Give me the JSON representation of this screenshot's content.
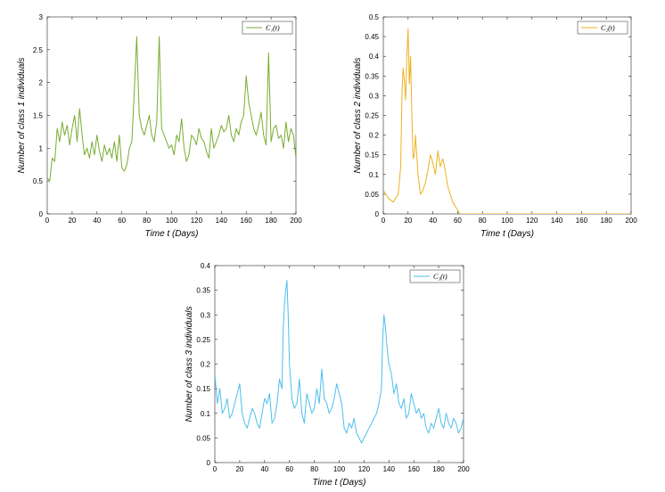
{
  "chart_data": [
    {
      "type": "line",
      "xlabel": "Time t (Days)",
      "ylabel": "Number of class 1 individuals",
      "xlim": [
        0,
        200
      ],
      "ylim": [
        0,
        3
      ],
      "xticks": [
        "0",
        "20",
        "40",
        "60",
        "80",
        "100",
        "120",
        "140",
        "160",
        "180",
        "200"
      ],
      "yticks": [
        "0",
        "0.5",
        "1",
        "1.5",
        "2",
        "2.5",
        "3"
      ],
      "grid": false,
      "legend_position": "top-right",
      "series": [
        {
          "name": "C₁(t)",
          "color": "#77AC30",
          "x": [
            0,
            2,
            4,
            6,
            8,
            10,
            12,
            14,
            16,
            18,
            20,
            22,
            24,
            26,
            28,
            30,
            32,
            34,
            36,
            38,
            40,
            42,
            44,
            46,
            48,
            50,
            52,
            54,
            56,
            58,
            60,
            62,
            64,
            66,
            68,
            70,
            72,
            74,
            76,
            78,
            80,
            82,
            84,
            86,
            88,
            90,
            92,
            94,
            96,
            98,
            100,
            102,
            104,
            106,
            108,
            110,
            112,
            114,
            116,
            118,
            120,
            122,
            124,
            126,
            128,
            130,
            132,
            134,
            136,
            138,
            140,
            142,
            144,
            146,
            148,
            150,
            152,
            154,
            156,
            158,
            160,
            162,
            164,
            166,
            168,
            170,
            172,
            174,
            176,
            178,
            180,
            182,
            184,
            186,
            188,
            190,
            192,
            194,
            196,
            198,
            200
          ],
          "values": [
            0.55,
            0.5,
            0.85,
            0.8,
            1.3,
            1.1,
            1.4,
            1.2,
            1.35,
            1.05,
            1.3,
            1.5,
            1.1,
            1.6,
            1.2,
            0.9,
            1.0,
            0.85,
            1.1,
            0.9,
            1.2,
            0.95,
            0.8,
            1.05,
            0.9,
            1.0,
            0.85,
            1.1,
            0.8,
            1.2,
            0.7,
            0.65,
            0.75,
            1.0,
            1.1,
            1.85,
            2.7,
            1.5,
            1.3,
            1.2,
            1.35,
            1.5,
            1.2,
            1.1,
            1.4,
            2.7,
            1.3,
            1.2,
            1.1,
            1.0,
            1.05,
            0.9,
            1.2,
            1.1,
            1.45,
            1.0,
            0.8,
            0.9,
            1.2,
            1.15,
            1.05,
            1.3,
            1.15,
            1.1,
            0.95,
            0.85,
            1.3,
            1.0,
            1.1,
            1.2,
            1.35,
            1.25,
            1.3,
            1.5,
            1.2,
            1.1,
            1.3,
            1.2,
            1.4,
            1.5,
            2.1,
            1.7,
            1.5,
            1.3,
            1.2,
            1.35,
            1.55,
            1.2,
            1.05,
            2.45,
            1.1,
            1.3,
            1.35,
            1.15,
            1.2,
            1.0,
            1.4,
            1.1,
            1.3,
            1.2,
            0.85
          ]
        }
      ]
    },
    {
      "type": "line",
      "xlabel": "Time t (Days)",
      "ylabel": "Number of class 2 individuals",
      "xlim": [
        0,
        200
      ],
      "ylim": [
        0,
        0.5
      ],
      "xticks": [
        "0",
        "20",
        "40",
        "60",
        "80",
        "100",
        "120",
        "140",
        "160",
        "180",
        "200"
      ],
      "yticks": [
        "0",
        "0.05",
        "0.1",
        "0.15",
        "0.2",
        "0.25",
        "0.3",
        "0.35",
        "0.4",
        "0.45",
        "0.5"
      ],
      "grid": false,
      "legend_position": "top-right",
      "series": [
        {
          "name": "C₂(t)",
          "color": "#EDB120",
          "x": [
            0,
            2,
            4,
            6,
            8,
            10,
            12,
            14,
            15,
            16,
            17,
            18,
            19,
            20,
            21,
            22,
            23,
            24,
            25,
            26,
            28,
            30,
            32,
            34,
            36,
            38,
            40,
            42,
            44,
            46,
            48,
            50,
            52,
            54,
            56,
            58,
            60,
            62,
            80,
            100,
            120,
            140,
            160,
            180,
            200
          ],
          "values": [
            0.06,
            0.05,
            0.04,
            0.035,
            0.03,
            0.04,
            0.05,
            0.12,
            0.3,
            0.37,
            0.34,
            0.29,
            0.4,
            0.47,
            0.33,
            0.4,
            0.25,
            0.14,
            0.15,
            0.2,
            0.1,
            0.05,
            0.06,
            0.08,
            0.11,
            0.15,
            0.13,
            0.1,
            0.16,
            0.12,
            0.14,
            0.11,
            0.07,
            0.05,
            0.03,
            0.02,
            0.01,
            0.0,
            0.0,
            0.0,
            0.0,
            0.0,
            0.0,
            0.0,
            0.0
          ]
        }
      ]
    },
    {
      "type": "line",
      "xlabel": "Time t (Days)",
      "ylabel": "Number of class 3 individuals",
      "xlim": [
        0,
        200
      ],
      "ylim": [
        0,
        0.4
      ],
      "xticks": [
        "0",
        "20",
        "40",
        "60",
        "80",
        "100",
        "120",
        "140",
        "160",
        "180",
        "200"
      ],
      "yticks": [
        "0",
        "0.05",
        "0.1",
        "0.15",
        "0.2",
        "0.25",
        "0.3",
        "0.35",
        "0.4"
      ],
      "grid": false,
      "legend_position": "top-right",
      "series": [
        {
          "name": "C₃(t)",
          "color": "#4DBEEE",
          "x": [
            0,
            2,
            4,
            6,
            8,
            10,
            12,
            14,
            16,
            18,
            20,
            22,
            24,
            26,
            28,
            30,
            32,
            34,
            36,
            38,
            40,
            42,
            44,
            46,
            48,
            50,
            52,
            54,
            55,
            56,
            57,
            58,
            59,
            60,
            62,
            64,
            66,
            68,
            70,
            72,
            74,
            76,
            78,
            80,
            82,
            84,
            86,
            88,
            90,
            92,
            94,
            96,
            98,
            100,
            102,
            104,
            106,
            108,
            110,
            112,
            114,
            116,
            118,
            120,
            122,
            124,
            126,
            128,
            130,
            132,
            134,
            135,
            136,
            137,
            138,
            139,
            140,
            142,
            144,
            146,
            148,
            150,
            152,
            154,
            156,
            158,
            160,
            162,
            164,
            166,
            168,
            170,
            172,
            174,
            176,
            178,
            180,
            182,
            184,
            186,
            188,
            190,
            192,
            194,
            196,
            198,
            200
          ],
          "values": [
            0.18,
            0.12,
            0.15,
            0.1,
            0.11,
            0.13,
            0.09,
            0.1,
            0.12,
            0.14,
            0.16,
            0.1,
            0.08,
            0.07,
            0.09,
            0.11,
            0.1,
            0.08,
            0.07,
            0.1,
            0.13,
            0.12,
            0.14,
            0.08,
            0.09,
            0.12,
            0.17,
            0.15,
            0.27,
            0.32,
            0.35,
            0.37,
            0.3,
            0.2,
            0.13,
            0.11,
            0.12,
            0.17,
            0.1,
            0.08,
            0.14,
            0.12,
            0.1,
            0.11,
            0.15,
            0.12,
            0.19,
            0.13,
            0.12,
            0.1,
            0.11,
            0.13,
            0.16,
            0.14,
            0.12,
            0.07,
            0.06,
            0.08,
            0.07,
            0.09,
            0.06,
            0.05,
            0.04,
            0.05,
            0.06,
            0.07,
            0.08,
            0.09,
            0.1,
            0.12,
            0.15,
            0.25,
            0.3,
            0.28,
            0.25,
            0.22,
            0.2,
            0.18,
            0.14,
            0.16,
            0.12,
            0.11,
            0.13,
            0.09,
            0.1,
            0.14,
            0.12,
            0.1,
            0.11,
            0.09,
            0.1,
            0.07,
            0.06,
            0.08,
            0.07,
            0.09,
            0.11,
            0.08,
            0.07,
            0.1,
            0.08,
            0.07,
            0.09,
            0.08,
            0.06,
            0.07,
            0.09
          ]
        }
      ]
    }
  ]
}
